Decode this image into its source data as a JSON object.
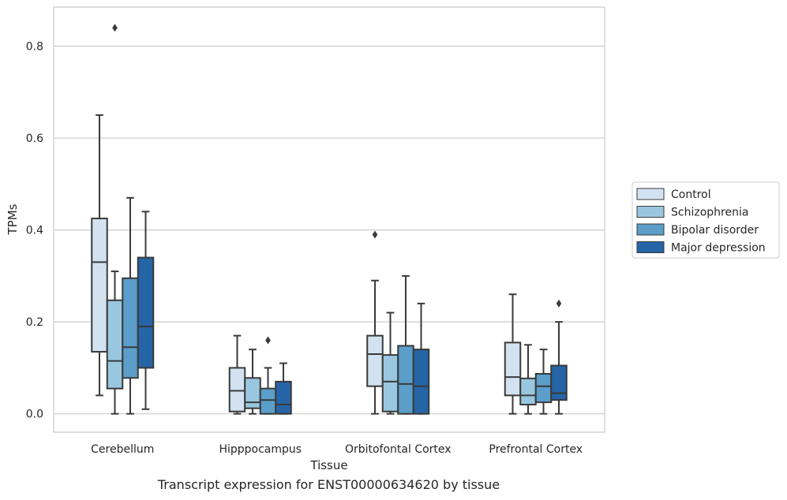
{
  "caption": "Transcript expression for ENST00000634620 by tissue",
  "colors": {
    "Control": "#d2e2f1",
    "Schizophrenia": "#9ac7e0",
    "Bipolar disorder": "#5a9ec9",
    "Major depression": "#2565a7",
    "edge": "#3a3a3a",
    "grid": "#cccccc"
  },
  "chart_data": {
    "type": "box",
    "xlabel": "Tissue",
    "ylabel": "TPMs",
    "ylim": [
      -0.04,
      0.885
    ],
    "yticks": [
      0.0,
      0.2,
      0.4,
      0.6,
      0.8
    ],
    "ytick_labels": [
      "0.0",
      "0.2",
      "0.4",
      "0.6",
      "0.8"
    ],
    "categories": [
      "Cerebellum",
      "Hipppocampus",
      "Orbitofontal Cortex",
      "Prefrontal Cortex"
    ],
    "grid": "horizontal",
    "legend_position": "right",
    "series": [
      {
        "name": "Control",
        "boxes": [
          {
            "whisker_low": 0.04,
            "q1": 0.135,
            "median": 0.33,
            "q3": 0.425,
            "whisker_high": 0.65,
            "outliers": []
          },
          {
            "whisker_low": 0.0,
            "q1": 0.005,
            "median": 0.05,
            "q3": 0.1,
            "whisker_high": 0.17,
            "outliers": []
          },
          {
            "whisker_low": 0.0,
            "q1": 0.06,
            "median": 0.13,
            "q3": 0.17,
            "whisker_high": 0.29,
            "outliers": [
              0.39
            ]
          },
          {
            "whisker_low": 0.0,
            "q1": 0.04,
            "median": 0.08,
            "q3": 0.155,
            "whisker_high": 0.26,
            "outliers": []
          }
        ]
      },
      {
        "name": "Schizophrenia",
        "boxes": [
          {
            "whisker_low": 0.0,
            "q1": 0.055,
            "median": 0.115,
            "q3": 0.247,
            "whisker_high": 0.31,
            "outliers": [
              0.84
            ]
          },
          {
            "whisker_low": 0.0,
            "q1": 0.012,
            "median": 0.025,
            "q3": 0.078,
            "whisker_high": 0.14,
            "outliers": []
          },
          {
            "whisker_low": 0.0,
            "q1": 0.005,
            "median": 0.07,
            "q3": 0.128,
            "whisker_high": 0.22,
            "outliers": []
          },
          {
            "whisker_low": 0.0,
            "q1": 0.02,
            "median": 0.04,
            "q3": 0.077,
            "whisker_high": 0.15,
            "outliers": []
          }
        ]
      },
      {
        "name": "Bipolar disorder",
        "boxes": [
          {
            "whisker_low": 0.0,
            "q1": 0.078,
            "median": 0.145,
            "q3": 0.295,
            "whisker_high": 0.47,
            "outliers": []
          },
          {
            "whisker_low": 0.0,
            "q1": 0.0,
            "median": 0.03,
            "q3": 0.055,
            "whisker_high": 0.1,
            "outliers": [
              0.16
            ]
          },
          {
            "whisker_low": 0.0,
            "q1": 0.0,
            "median": 0.065,
            "q3": 0.148,
            "whisker_high": 0.3,
            "outliers": []
          },
          {
            "whisker_low": 0.0,
            "q1": 0.025,
            "median": 0.06,
            "q3": 0.087,
            "whisker_high": 0.14,
            "outliers": []
          }
        ]
      },
      {
        "name": "Major depression",
        "boxes": [
          {
            "whisker_low": 0.01,
            "q1": 0.1,
            "median": 0.19,
            "q3": 0.34,
            "whisker_high": 0.44,
            "outliers": []
          },
          {
            "whisker_low": 0.0,
            "q1": 0.0,
            "median": 0.02,
            "q3": 0.07,
            "whisker_high": 0.11,
            "outliers": []
          },
          {
            "whisker_low": 0.0,
            "q1": 0.0,
            "median": 0.06,
            "q3": 0.14,
            "whisker_high": 0.24,
            "outliers": []
          },
          {
            "whisker_low": 0.0,
            "q1": 0.03,
            "median": 0.045,
            "q3": 0.105,
            "whisker_high": 0.2,
            "outliers": [
              0.24
            ]
          }
        ]
      }
    ]
  }
}
